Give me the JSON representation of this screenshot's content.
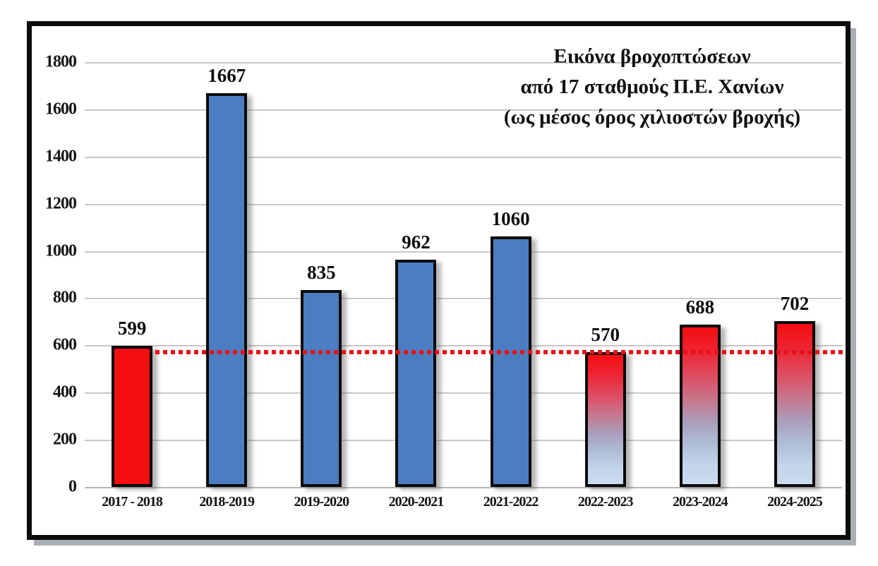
{
  "chart_data": {
    "type": "bar",
    "title_lines": [
      "Εικόνα βροχοπτώσεων",
      "από 17 σταθμούς Π.Ε. Χανίων",
      "(ως μέσος όρος χιλιοστών βροχής)"
    ],
    "categories": [
      "2017 - 2018",
      "2018-2019",
      "2019-2020",
      "2020-2021",
      "2021-2022",
      "2022-2023",
      "2023-2024",
      "2024-2025"
    ],
    "values": [
      599,
      1667,
      835,
      962,
      1060,
      570,
      688,
      702
    ],
    "bar_styles": [
      "red",
      "blue",
      "blue",
      "blue",
      "blue",
      "gradient",
      "gradient",
      "gradient"
    ],
    "ylim": [
      0,
      1800
    ],
    "yticks": [
      0,
      200,
      400,
      600,
      800,
      1000,
      1200,
      1400,
      1600,
      1800
    ],
    "grid": true,
    "legend": "none",
    "reference_line": {
      "value": 570,
      "style": "dotted",
      "color": "#ea1016",
      "starts_after_category_index": 0
    },
    "colors": {
      "bar_red": "#f50d10",
      "bar_blue": "#4b7ec0",
      "gradient_top": "#f50d10",
      "gradient_bottom": "#ccdbee",
      "bar_border": "#0b0b0b",
      "gridline": "#c9c9c9",
      "frame_border": "#0c0c0c",
      "text": "#111111"
    }
  }
}
